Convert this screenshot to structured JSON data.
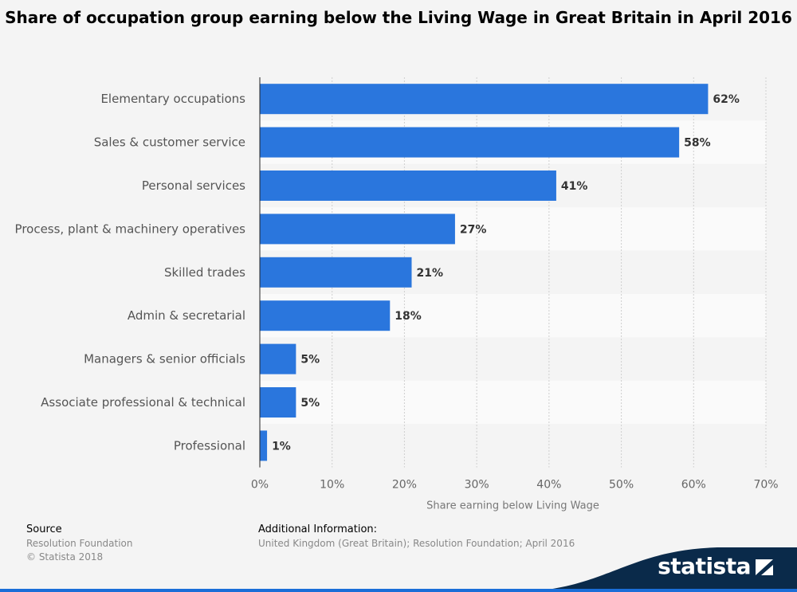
{
  "title": "Share of occupation group earning below the Living Wage in Great Britain in April 2016",
  "chart_data": {
    "type": "bar",
    "orientation": "horizontal",
    "categories": [
      "Elementary occupations",
      "Sales & customer service",
      "Personal services",
      "Process, plant & machinery operatives",
      "Skilled trades",
      "Admin & secretarial",
      "Managers & senior officials",
      "Associate professional & technical",
      "Professional"
    ],
    "values": [
      62,
      58,
      41,
      27,
      21,
      18,
      5,
      5,
      1
    ],
    "value_labels": [
      "62%",
      "58%",
      "41%",
      "27%",
      "21%",
      "18%",
      "5%",
      "5%",
      "1%"
    ],
    "xlim": [
      0,
      70
    ],
    "ticks": [
      0,
      10,
      20,
      30,
      40,
      50,
      60,
      70
    ],
    "tick_labels": [
      "0%",
      "10%",
      "20%",
      "30%",
      "40%",
      "50%",
      "60%",
      "70%"
    ],
    "xlabel": "Share earning below Living Wage",
    "grid": true,
    "bar_color": "#2a76dd"
  },
  "footer": {
    "source_heading": "Source",
    "source_lines": [
      "Resolution Foundation",
      "© Statista 2018"
    ],
    "info_heading": "Additional Information:",
    "info_text": "United Kingdom (Great Britain); Resolution Foundation; April 2016"
  },
  "brand": {
    "name": "statista",
    "icon": "statista-logo-icon",
    "color": "#0a2a4a"
  }
}
